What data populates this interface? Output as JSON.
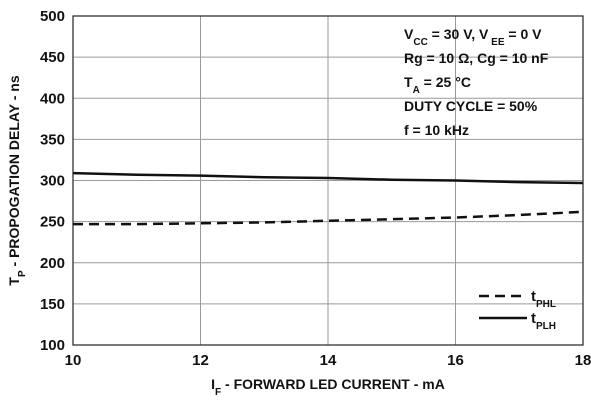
{
  "chart_data": {
    "type": "line",
    "xlabel": {
      "main": "I",
      "sub": "F",
      "rest": " - FORWARD LED CURRENT - mA"
    },
    "ylabel": {
      "main": "T",
      "sub": "P",
      "rest": " - PROPOGATION DELAY - ns"
    },
    "xlim": [
      10,
      18
    ],
    "ylim": [
      100,
      500
    ],
    "x_ticks": [
      10,
      12,
      14,
      16,
      18
    ],
    "y_ticks": [
      100,
      150,
      200,
      250,
      300,
      350,
      400,
      450,
      500
    ],
    "grid": true,
    "annotations": [
      [
        {
          "t": "V"
        },
        {
          "t": "CC",
          "sub": true
        },
        {
          "t": " = 30 V, V"
        },
        {
          "t": " EE",
          "sub": true
        },
        {
          "t": " = 0 V"
        }
      ],
      [
        {
          "t": "Rg = 10 Ω,  Cg = 10 nF"
        }
      ],
      [
        {
          "t": "T"
        },
        {
          "t": "A",
          "sub": true
        },
        {
          "t": " = 25 °C"
        }
      ],
      [
        {
          "t": "DUTY CYCLE = 50%"
        }
      ],
      [
        {
          "t": "f = 10 kHz"
        }
      ]
    ],
    "legend_position": "bottom-right",
    "series": [
      {
        "name": "tPHL",
        "label": {
          "main": "t",
          "sub": "PHL"
        },
        "style": "dashed",
        "x": [
          10,
          11,
          12,
          13,
          14,
          15,
          16,
          17,
          18
        ],
        "y": [
          247,
          247,
          248,
          249,
          251,
          253,
          255,
          258,
          262
        ]
      },
      {
        "name": "tPLH",
        "label": {
          "main": "t",
          "sub": "PLH"
        },
        "style": "solid",
        "x": [
          10,
          11,
          12,
          13,
          14,
          15,
          16,
          17,
          18
        ],
        "y": [
          309,
          307,
          306,
          304,
          303,
          301,
          300,
          298,
          297
        ]
      }
    ]
  }
}
